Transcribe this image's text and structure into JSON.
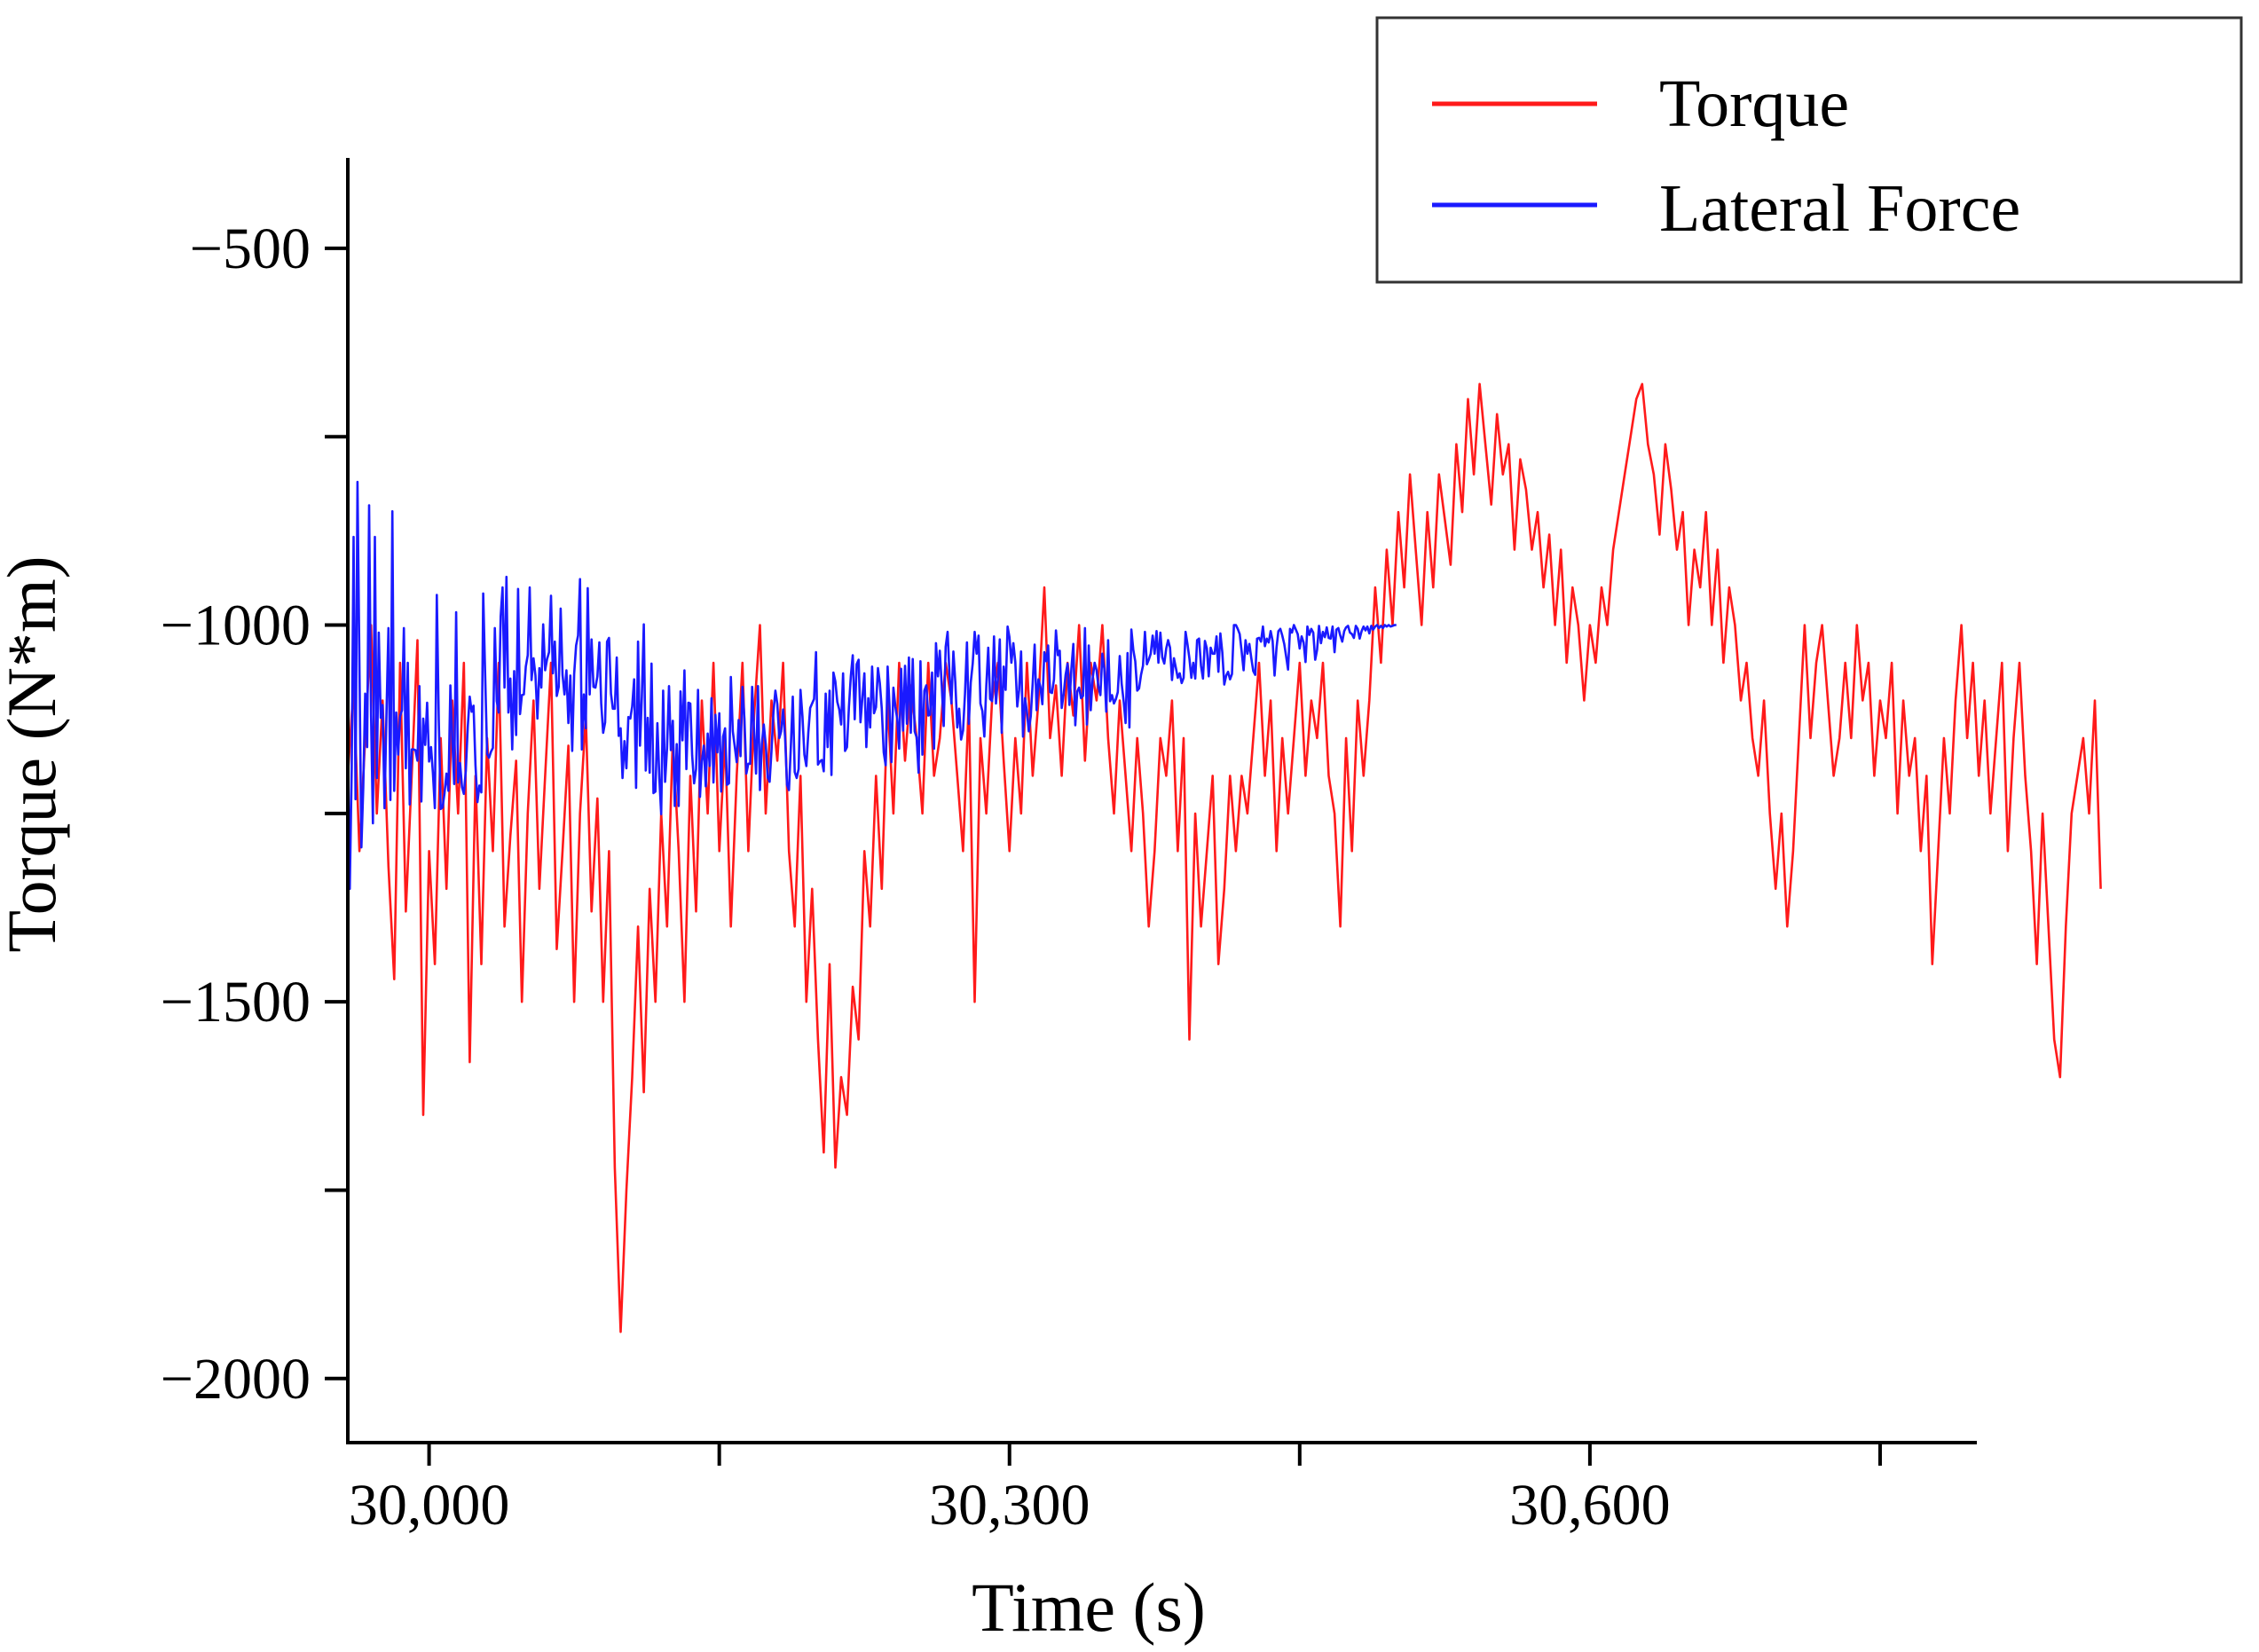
{
  "chart_data": {
    "type": "line",
    "title": "",
    "xlabel": "Time (s)",
    "ylabel": "Torque (N*m)",
    "xlim": [
      29958,
      30800
    ],
    "ylim": [
      -2085,
      -380
    ],
    "xticks": [
      30000,
      30150,
      30300,
      30450,
      30600,
      30750
    ],
    "xtick_labels": [
      "30,000",
      "",
      "30,300",
      "",
      "30,600",
      ""
    ],
    "yticks": [
      -500,
      -750,
      -1000,
      -1250,
      -1500,
      -1750,
      -2000
    ],
    "ytick_labels": [
      "−500",
      "",
      "−1000",
      "",
      "−1500",
      "",
      "−2000"
    ],
    "grid": false,
    "legend": {
      "position": "top-right"
    },
    "series": [
      {
        "name": "Torque",
        "color": "#ff1a1a",
        "x_start": 29958,
        "x_step": 3,
        "values": [
          -1200,
          -1080,
          -1300,
          -1150,
          -1000,
          -1250,
          -1100,
          -1320,
          -1470,
          -1050,
          -1380,
          -1200,
          -1020,
          -1650,
          -1300,
          -1450,
          -1150,
          -1350,
          -1100,
          -1250,
          -1050,
          -1580,
          -1200,
          -1450,
          -1150,
          -1300,
          -1050,
          -1400,
          -1280,
          -1180,
          -1500,
          -1250,
          -1100,
          -1350,
          -1200,
          -1050,
          -1430,
          -1300,
          -1160,
          -1500,
          -1250,
          -1120,
          -1380,
          -1230,
          -1500,
          -1300,
          -1720,
          -1938,
          -1750,
          -1600,
          -1400,
          -1620,
          -1350,
          -1500,
          -1250,
          -1400,
          -1150,
          -1300,
          -1500,
          -1200,
          -1380,
          -1100,
          -1250,
          -1050,
          -1300,
          -1150,
          -1400,
          -1200,
          -1050,
          -1300,
          -1120,
          -1000,
          -1250,
          -1100,
          -1180,
          -1050,
          -1300,
          -1400,
          -1200,
          -1500,
          -1350,
          -1550,
          -1700,
          -1450,
          -1720,
          -1600,
          -1650,
          -1480,
          -1550,
          -1300,
          -1400,
          -1200,
          -1350,
          -1100,
          -1250,
          -1050,
          -1180,
          -1080,
          -1150,
          -1250,
          -1050,
          -1200,
          -1150,
          -1050,
          -1100,
          -1200,
          -1300,
          -1100,
          -1500,
          -1150,
          -1250,
          -1100,
          -1050,
          -1180,
          -1300,
          -1150,
          -1250,
          -1050,
          -1200,
          -1100,
          -950,
          -1150,
          -1080,
          -1200,
          -1050,
          -1120,
          -1000,
          -1180,
          -1050,
          -1100,
          -1000,
          -1150,
          -1250,
          -1100,
          -1200,
          -1300,
          -1150,
          -1250,
          -1400,
          -1300,
          -1150,
          -1200,
          -1100,
          -1300,
          -1150,
          -1550,
          -1250,
          -1400,
          -1300,
          -1200,
          -1450,
          -1350,
          -1200,
          -1300,
          -1200,
          -1250,
          -1150,
          -1050,
          -1200,
          -1100,
          -1300,
          -1150,
          -1250,
          -1150,
          -1050,
          -1200,
          -1100,
          -1150,
          -1050,
          -1200,
          -1250,
          -1400,
          -1150,
          -1300,
          -1100,
          -1200,
          -1100,
          -950,
          -1050,
          -900,
          -1000,
          -850,
          -950,
          -800,
          -900,
          -1000,
          -850,
          -950,
          -800,
          -860,
          -920,
          -760,
          -850,
          -700,
          -800,
          -680,
          -760,
          -840,
          -720,
          -800,
          -760,
          -900,
          -780,
          -820,
          -900,
          -850,
          -950,
          -880,
          -1000,
          -900,
          -1050,
          -950,
          -1000,
          -1100,
          -1000,
          -1050,
          -950,
          -1000,
          -900,
          -850,
          -800,
          -750,
          -700,
          -680,
          -760,
          -800,
          -880,
          -760,
          -820,
          -900,
          -850,
          -1000,
          -900,
          -950,
          -850,
          -1000,
          -900,
          -1050,
          -950,
          -1000,
          -1100,
          -1050,
          -1150,
          -1200,
          -1100,
          -1250,
          -1350,
          -1250,
          -1400,
          -1300,
          -1150,
          -1000,
          -1150,
          -1050,
          -1000,
          -1100,
          -1200,
          -1150,
          -1050,
          -1150,
          -1000,
          -1100,
          -1050,
          -1200,
          -1100,
          -1150,
          -1050,
          -1250,
          -1100,
          -1200,
          -1150,
          -1300,
          -1200,
          -1450,
          -1300,
          -1150,
          -1250,
          -1100,
          -1000,
          -1150,
          -1050,
          -1200,
          -1100,
          -1250,
          -1150,
          -1050,
          -1300,
          -1150,
          -1050,
          -1200,
          -1300,
          -1450,
          -1250,
          -1400,
          -1550,
          -1600,
          -1400,
          -1250,
          -1200,
          -1150,
          -1250,
          -1100,
          -1350
        ]
      },
      {
        "name": "Lateral Force",
        "color": "#1a1aff",
        "x_start": 29958,
        "x_step": 1,
        "values": [
          -1150,
          -1350,
          -1190,
          -883,
          -1231,
          -810,
          -1053,
          -1295,
          -1216,
          -1091,
          -1162,
          -841,
          -1119,
          -1263,
          -883,
          -1203,
          -1010,
          -1123,
          -1106,
          -1243,
          -1116,
          -1004,
          -1232,
          -849,
          -1220,
          -1116,
          -1172,
          -1121,
          -1113,
          -1004,
          -1190,
          -1050,
          -1238,
          -1165,
          -1165,
          -1166,
          -1180,
          -1081,
          -1234,
          -1124,
          -1159,
          -1103,
          -1181,
          -1162,
          -1196,
          -1243,
          -960,
          -1125,
          -1244,
          -1242,
          -1223,
          -1197,
          -1220,
          -1080,
          -1149,
          -1211,
          -983,
          -1209,
          -1183,
          -1215,
          -1224,
          -1193,
          -1135,
          -1095,
          -1115,
          -1107,
          -1186,
          -1235,
          -1213,
          -1222,
          -958,
          -1066,
          -1171,
          -1176,
          -1168,
          -1163,
          -1004,
          -1101,
          -1116,
          -988,
          -950,
          -1083,
          -936,
          -1116,
          -1071,
          -1165,
          -1061,
          -1146,
          -952,
          -1118,
          -1093,
          -1092,
          -1055,
          -1040,
          -950,
          -1073,
          -1044,
          -1067,
          -1124,
          -1057,
          -1083,
          -999,
          -1060,
          -1045,
          -1036,
          -961,
          -1064,
          -1022,
          -1094,
          -1082,
          -978,
          -1066,
          -1092,
          -1060,
          -1130,
          -1067,
          -1167,
          -1065,
          -1027,
          -1014,
          -939,
          -1165,
          -1092,
          -1137,
          -951,
          -1092,
          -1019,
          -1082,
          -1083,
          -1068,
          -1023,
          -1104,
          -1143,
          -1129,
          -1022,
          -1017,
          -1091,
          -1111,
          -1111,
          -1043,
          -1147,
          -1137,
          -1203,
          -1154,
          -1190,
          -1122,
          -1124,
          -1108,
          -1072,
          -1216,
          -1022,
          -1160,
          -1095,
          -999,
          -1193,
          -1123,
          -1196,
          -1051,
          -1223,
          -1221,
          -1130,
          -1203,
          -1251,
          -1087,
          -1208,
          -1163,
          -1081,
          -1166,
          -1127,
          -1240,
          -1158,
          -1240,
          -1088,
          -1153,
          -1060,
          -1191,
          -1103,
          -1104,
          -1173,
          -1210,
          -1191,
          -1086,
          -1228,
          -1181,
          -1160,
          -1214,
          -1144,
          -1187,
          -1097,
          -1209,
          -1119,
          -1169,
          -1117,
          -1221,
          -1148,
          -1137,
          -1212,
          -1210,
          -1069,
          -1141,
          -1161,
          -1182,
          -1126,
          -1174,
          -1082,
          -1124,
          -1197,
          -1184,
          -1184,
          -1082,
          -1142,
          -1197,
          -1081,
          -1219,
          -1158,
          -1132,
          -1158,
          -1202,
          -1208,
          -1167,
          -1116,
          -1087,
          -1105,
          -1150,
          -1141,
          -1112,
          -1148,
          -1212,
          -1219,
          -1162,
          -1095,
          -1195,
          -1203,
          -1191,
          -1086,
          -1121,
          -1172,
          -1187,
          -1143,
          -1110,
          -1104,
          -1098,
          -1036,
          -1185,
          -1181,
          -1179,
          -1194,
          -1091,
          -1162,
          -1087,
          -1199,
          -1063,
          -1075,
          -1102,
          -1112,
          -1132,
          -1064,
          -1167,
          -1162,
          -1108,
          -1068,
          -1040,
          -1125,
          -1052,
          -1046,
          -1129,
          -1096,
          -1064,
          -1162,
          -1097,
          -1136,
          -1055,
          -1117,
          -1109,
          -1057,
          -1077,
          -1111,
          -1169,
          -1186,
          -1055,
          -1107,
          -1182,
          -1083,
          -1108,
          -1125,
          -1164,
          -1058,
          -1140,
          -1054,
          -1131,
          -1043,
          -1143,
          -1045,
          -1141,
          -1149,
          -1196,
          -1048,
          -1172,
          -1087,
          -1080,
          -1120,
          -1119,
          -1063,
          -1164,
          -1024,
          -1068,
          -1034,
          -1080,
          -1134,
          -1029,
          -1009,
          -1065,
          -1104,
          -1035,
          -1076,
          -1136,
          -1111,
          -1152,
          -1140,
          -1091,
          -1023,
          -1131,
          -1076,
          -1051,
          -1009,
          -1038,
          -1014,
          -1104,
          -1114,
          -1148,
          -1081,
          -1030,
          -1098,
          -1101,
          -1015,
          -1104,
          -1071,
          -1019,
          -1143,
          -1055,
          -1086,
          -1002,
          -1016,
          -1050,
          -1024,
          -1049,
          -1108,
          -1086,
          -1035,
          -1148,
          -1097,
          -1115,
          -1141,
          -1121,
          -1077,
          -1026,
          -1113,
          -1072,
          -1082,
          -1105,
          -1036,
          -1048,
          -1027,
          -1089,
          -1090,
          -1072,
          -1007,
          -1040,
          -1034,
          -1110,
          -1092,
          -1066,
          -1051,
          -1106,
          -1058,
          -1025,
          -1133,
          -1088,
          -1083,
          -1097,
          -1094,
          -1004,
          -1132,
          -1027,
          -1113,
          -1071,
          -1050,
          -1060,
          -1082,
          -1093,
          -1038,
          -1058,
          -1115,
          -1020,
          -1101,
          -1093,
          -1104,
          -1098,
          -1089,
          -1041,
          -1078,
          -1101,
          -1130,
          -1037,
          -1136,
          -1006,
          -1033,
          -1048,
          -1087,
          -1084,
          -1066,
          -1054,
          -1009,
          -1052,
          -1046,
          -1038,
          -1014,
          -1038,
          -1008,
          -1050,
          -1010,
          -1043,
          -1051,
          -1031,
          -1020,
          -1030,
          -1073,
          -1044,
          -1057,
          -1070,
          -1064,
          -1077,
          -1070,
          -1009,
          -1025,
          -1044,
          -1070,
          -1050,
          -1071,
          -1020,
          -1018,
          -1054,
          -1071,
          -1021,
          -1031,
          -1068,
          -1030,
          -1038,
          -1038,
          -1015,
          -1062,
          -1011,
          -1036,
          -1079,
          -1067,
          -1062,
          -1072,
          -1065,
          -1000,
          -1000,
          -1005,
          -1012,
          -1035,
          -1060,
          -1020,
          -1038,
          -1025,
          -1044,
          -1061,
          -1066,
          -1018,
          -1017,
          -1022,
          -1002,
          -1028,
          -1018,
          -1023,
          -1008,
          -1021,
          -1067,
          -1030,
          -1008,
          -1005,
          -1014,
          -1025,
          -1042,
          -1059,
          -1005,
          -1010,
          -1000,
          -1006,
          -1012,
          -1031,
          -1015,
          -1023,
          -1049,
          -1002,
          -1013,
          -1005,
          -1010,
          -1046,
          -1033,
          -1001,
          -1024,
          -1009,
          -1016,
          -1003,
          -1017,
          -1018,
          -1002,
          -1036,
          -1006,
          -1004,
          -1014,
          -1022,
          -1008,
          -1003,
          -1001,
          -1010,
          -1012,
          -1017,
          -1001,
          -1005,
          -1018,
          -1008,
          -1002,
          -1007,
          -1002,
          -1011,
          -1001,
          -1006,
          -1002,
          -1000,
          -1004,
          -1001,
          -1004,
          -1000,
          -1002,
          -1000,
          -1002,
          -1001,
          -1000,
          -1000
        ]
      }
    ]
  },
  "legend": {
    "items": [
      {
        "label": "Torque",
        "color": "#ff1a1a"
      },
      {
        "label": "Lateral Force",
        "color": "#1a1aff"
      }
    ]
  }
}
